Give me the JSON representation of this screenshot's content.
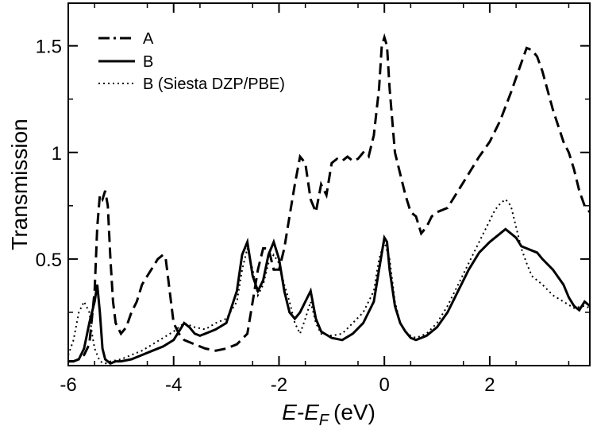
{
  "chart_data": {
    "type": "line",
    "xlabel": "E-E_F (eV)",
    "xlabel_parts": {
      "italic_main": "E-E",
      "subscript": "F",
      "unit": "(eV)"
    },
    "ylabel": "Transmission",
    "xlim": [
      -6.0,
      3.9
    ],
    "ylim": [
      0.0,
      1.7
    ],
    "x_ticks": [
      -6,
      -4,
      -2,
      0,
      2
    ],
    "x_tick_labels": [
      "-6",
      "-4",
      "-2",
      "0",
      "2"
    ],
    "y_ticks": [
      0.5,
      1.0,
      1.5
    ],
    "y_tick_labels": [
      "0.5",
      "1",
      "1.5"
    ],
    "grid": false,
    "legend_position": "top-left",
    "series": [
      {
        "name": "A",
        "style": "dashed",
        "x": [
          -6.0,
          -5.9,
          -5.8,
          -5.7,
          -5.6,
          -5.5,
          -5.45,
          -5.4,
          -5.35,
          -5.3,
          -5.25,
          -5.2,
          -5.15,
          -5.1,
          -5.0,
          -4.9,
          -4.8,
          -4.7,
          -4.6,
          -4.5,
          -4.4,
          -4.3,
          -4.2,
          -4.15,
          -4.1,
          -4.0,
          -3.9,
          -3.8,
          -3.6,
          -3.4,
          -3.2,
          -3.0,
          -2.8,
          -2.6,
          -2.5,
          -2.4,
          -2.3,
          -2.2,
          -2.1,
          -2.0,
          -1.9,
          -1.8,
          -1.7,
          -1.6,
          -1.5,
          -1.4,
          -1.3,
          -1.2,
          -1.1,
          -1.0,
          -0.9,
          -0.8,
          -0.7,
          -0.6,
          -0.5,
          -0.4,
          -0.3,
          -0.2,
          -0.1,
          -0.05,
          0.0,
          0.05,
          0.1,
          0.2,
          0.3,
          0.4,
          0.5,
          0.6,
          0.7,
          0.8,
          0.9,
          1.0,
          1.2,
          1.4,
          1.6,
          1.8,
          2.0,
          2.2,
          2.4,
          2.6,
          2.7,
          2.8,
          2.9,
          3.0,
          3.2,
          3.4,
          3.5,
          3.6,
          3.7,
          3.8,
          3.9
        ],
        "y": [
          0.02,
          0.02,
          0.03,
          0.05,
          0.1,
          0.35,
          0.65,
          0.8,
          0.78,
          0.82,
          0.75,
          0.5,
          0.3,
          0.2,
          0.15,
          0.18,
          0.25,
          0.3,
          0.38,
          0.42,
          0.46,
          0.5,
          0.52,
          0.5,
          0.4,
          0.2,
          0.15,
          0.12,
          0.1,
          0.08,
          0.07,
          0.08,
          0.1,
          0.15,
          0.3,
          0.45,
          0.55,
          0.55,
          0.45,
          0.45,
          0.55,
          0.7,
          0.85,
          0.98,
          0.95,
          0.78,
          0.72,
          0.85,
          0.8,
          0.95,
          0.97,
          0.96,
          0.98,
          0.96,
          0.97,
          1.0,
          0.98,
          1.08,
          1.3,
          1.5,
          1.54,
          1.5,
          1.3,
          1.0,
          0.9,
          0.8,
          0.72,
          0.7,
          0.62,
          0.65,
          0.7,
          0.72,
          0.74,
          0.82,
          0.9,
          0.98,
          1.05,
          1.15,
          1.28,
          1.42,
          1.49,
          1.48,
          1.45,
          1.38,
          1.2,
          1.05,
          1.0,
          0.92,
          0.82,
          0.75,
          0.72
        ]
      },
      {
        "name": "B",
        "style": "solid",
        "x": [
          -6.0,
          -5.9,
          -5.8,
          -5.7,
          -5.6,
          -5.5,
          -5.45,
          -5.4,
          -5.35,
          -5.3,
          -5.2,
          -5.1,
          -5.0,
          -4.8,
          -4.6,
          -4.4,
          -4.2,
          -4.0,
          -3.9,
          -3.8,
          -3.7,
          -3.6,
          -3.5,
          -3.4,
          -3.3,
          -3.2,
          -3.0,
          -2.8,
          -2.7,
          -2.6,
          -2.5,
          -2.4,
          -2.3,
          -2.2,
          -2.1,
          -2.0,
          -1.9,
          -1.8,
          -1.7,
          -1.6,
          -1.5,
          -1.4,
          -1.3,
          -1.2,
          -1.0,
          -0.8,
          -0.6,
          -0.4,
          -0.2,
          -0.1,
          0.0,
          0.05,
          0.1,
          0.2,
          0.3,
          0.4,
          0.5,
          0.6,
          0.8,
          1.0,
          1.2,
          1.4,
          1.6,
          1.8,
          2.0,
          2.2,
          2.3,
          2.4,
          2.5,
          2.6,
          2.7,
          2.8,
          2.9,
          3.0,
          3.2,
          3.4,
          3.5,
          3.6,
          3.7,
          3.8,
          3.9
        ],
        "y": [
          0.02,
          0.02,
          0.03,
          0.08,
          0.2,
          0.3,
          0.38,
          0.25,
          0.08,
          0.03,
          0.01,
          0.02,
          0.02,
          0.03,
          0.05,
          0.07,
          0.09,
          0.12,
          0.16,
          0.2,
          0.18,
          0.15,
          0.14,
          0.15,
          0.16,
          0.17,
          0.2,
          0.35,
          0.52,
          0.58,
          0.42,
          0.35,
          0.4,
          0.52,
          0.58,
          0.5,
          0.35,
          0.25,
          0.22,
          0.25,
          0.3,
          0.35,
          0.22,
          0.16,
          0.13,
          0.12,
          0.15,
          0.2,
          0.3,
          0.45,
          0.6,
          0.58,
          0.45,
          0.28,
          0.2,
          0.16,
          0.13,
          0.12,
          0.14,
          0.18,
          0.25,
          0.35,
          0.45,
          0.53,
          0.58,
          0.62,
          0.64,
          0.62,
          0.6,
          0.56,
          0.55,
          0.54,
          0.53,
          0.5,
          0.45,
          0.38,
          0.32,
          0.28,
          0.26,
          0.3,
          0.28
        ]
      },
      {
        "name": "B (Siesta DZP/PBE)",
        "style": "dotted",
        "x": [
          -6.0,
          -5.9,
          -5.8,
          -5.7,
          -5.6,
          -5.55,
          -5.5,
          -5.4,
          -5.3,
          -5.2,
          -5.0,
          -4.8,
          -4.6,
          -4.4,
          -4.2,
          -4.0,
          -3.8,
          -3.6,
          -3.4,
          -3.2,
          -3.0,
          -2.8,
          -2.7,
          -2.6,
          -2.5,
          -2.4,
          -2.3,
          -2.2,
          -2.1,
          -2.0,
          -1.9,
          -1.8,
          -1.7,
          -1.6,
          -1.5,
          -1.4,
          -1.3,
          -1.2,
          -1.0,
          -0.8,
          -0.6,
          -0.4,
          -0.2,
          -0.1,
          0.0,
          0.1,
          0.2,
          0.3,
          0.4,
          0.5,
          0.6,
          0.8,
          1.0,
          1.2,
          1.4,
          1.6,
          1.8,
          2.0,
          2.1,
          2.2,
          2.3,
          2.4,
          2.5,
          2.6,
          2.7,
          2.8,
          3.0,
          3.2,
          3.4,
          3.6,
          3.8,
          3.9
        ],
        "y": [
          0.05,
          0.12,
          0.25,
          0.3,
          0.25,
          0.15,
          0.08,
          0.02,
          0.01,
          0.02,
          0.03,
          0.05,
          0.07,
          0.1,
          0.13,
          0.16,
          0.2,
          0.18,
          0.17,
          0.2,
          0.22,
          0.3,
          0.45,
          0.55,
          0.45,
          0.33,
          0.38,
          0.48,
          0.52,
          0.48,
          0.38,
          0.3,
          0.2,
          0.15,
          0.22,
          0.3,
          0.2,
          0.15,
          0.14,
          0.15,
          0.2,
          0.25,
          0.35,
          0.5,
          0.58,
          0.5,
          0.3,
          0.2,
          0.16,
          0.14,
          0.13,
          0.15,
          0.2,
          0.28,
          0.38,
          0.48,
          0.58,
          0.68,
          0.73,
          0.76,
          0.78,
          0.75,
          0.65,
          0.55,
          0.48,
          0.42,
          0.38,
          0.33,
          0.3,
          0.27,
          0.28,
          0.27
        ]
      }
    ]
  }
}
